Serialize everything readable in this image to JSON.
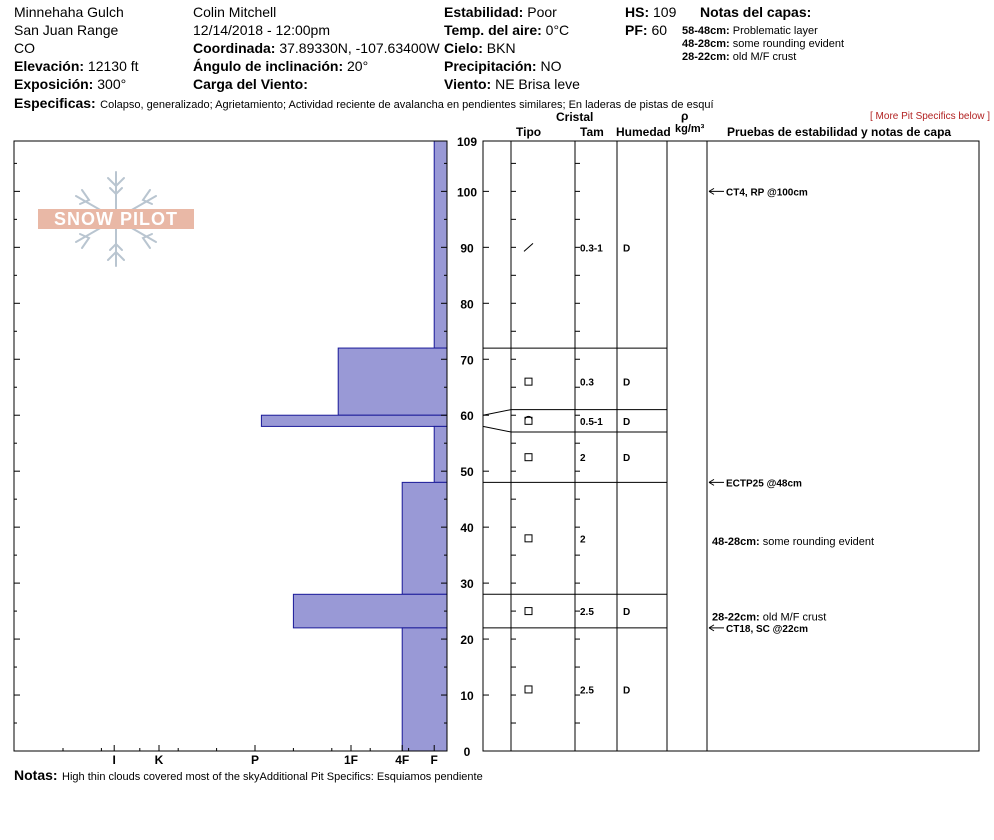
{
  "header": {
    "location": "Minnehaha Gulch",
    "range": "San Juan Range",
    "state": "CO",
    "elevation_label": "Elevación:",
    "elevation_value": "12130 ft",
    "aspect_label": "Exposición:",
    "aspect_value": "300°",
    "observer": "Colin Mitchell",
    "datetime": "12/14/2018 - 12:00pm",
    "coord_label": "Coordinada:",
    "coord_value": "37.89330N, -107.63400W",
    "slope_label": "Ángulo de inclinación:",
    "slope_value": "20°",
    "wind_load_label": "Carga del Viento:",
    "wind_load_value": "",
    "stability_label": "Estabilidad:",
    "stability_value": "Poor",
    "air_temp_label": "Temp. del aire:",
    "air_temp_value": "0°C",
    "sky_label": "Cielo:",
    "sky_value": "BKN",
    "precip_label": "Precipitación:",
    "precip_value": "NO",
    "wind_label": "Viento:",
    "wind_value": "NE Brisa leve",
    "hs_label": "HS:",
    "hs_value": "109",
    "pf_label": "PF:",
    "pf_value": "60",
    "layer_notes_title": "Notas del capas:",
    "layer_notes": [
      {
        "range": "58-48cm:",
        "text": "Problematic layer"
      },
      {
        "range": "48-28cm:",
        "text": "some rounding evident"
      },
      {
        "range": "28-22cm:",
        "text": "old M/F crust"
      }
    ],
    "specifics_label": "Especificas:",
    "specifics_value": "Colapso, generalizado;  Agrietamiento;  Actividad reciente de avalancha en pendientes similares;  En laderas de pistas de esquí",
    "more_specifics": "[ More Pit Specifics below ]"
  },
  "columns": {
    "crystal": "Cristal",
    "type": "Tipo",
    "size": "Tam",
    "moisture": "Humedad",
    "rho": "ρ",
    "density_unit": "kg/m³",
    "tests": "Pruebas de estabilidad y notas de capa"
  },
  "footer": {
    "notes_label": "Notas:",
    "notes_value": "High thin clouds covered most of the skyAdditional Pit Specifics: Esquiamos pendiente"
  },
  "colors": {
    "hardness_fill": "#9999d6",
    "hardness_stroke": "#1a1a99",
    "logo": "#e9b8a6",
    "flake": "#b9c5d0"
  },
  "chart_data": {
    "type": "bar",
    "total_depth_cm": 109,
    "depth_axis": {
      "min": 0,
      "max": 109,
      "labeled_ticks": [
        0,
        10,
        20,
        30,
        40,
        50,
        60,
        70,
        80,
        90,
        100,
        109
      ]
    },
    "hardness_ticks": [
      {
        "label": "I",
        "rank": 5.2
      },
      {
        "label": "K",
        "rank": 4.5
      },
      {
        "label": "P",
        "rank": 3
      },
      {
        "label": "1F",
        "rank": 1.5
      },
      {
        "label": "4F",
        "rank": 0.7
      },
      {
        "label": "F",
        "rank": 0.2
      }
    ],
    "hardness_layers": [
      {
        "top": 109,
        "bottom": 72,
        "hardness": "F",
        "rank": 0.2
      },
      {
        "top": 72,
        "bottom": 60,
        "hardness": "1F",
        "rank": 1.7
      },
      {
        "top": 60,
        "bottom": 58,
        "hardness": "P",
        "rank": 2.9
      },
      {
        "top": 58,
        "bottom": 48,
        "hardness": "F",
        "rank": 0.2
      },
      {
        "top": 48,
        "bottom": 28,
        "hardness": "4F",
        "rank": 0.7
      },
      {
        "top": 28,
        "bottom": 22,
        "hardness": "P",
        "rank": 2.4
      },
      {
        "top": 22,
        "bottom": 0,
        "hardness": "4F",
        "rank": 0.7
      }
    ],
    "layer_boundaries_cm": [
      109,
      72,
      61,
      57,
      48,
      28,
      22
    ],
    "layers": [
      {
        "center": 90,
        "grain": "decomposing",
        "size": "0.3-1",
        "moisture": "D"
      },
      {
        "center": 66,
        "grain": "faceted",
        "size": "0.3",
        "moisture": "D"
      },
      {
        "center": 59,
        "grain": "faceted-rounded",
        "size": "0.5-1",
        "moisture": "D"
      },
      {
        "center": 52.5,
        "grain": "faceted",
        "size": "2",
        "moisture": "D"
      },
      {
        "center": 38,
        "grain": "faceted",
        "size": "2",
        "moisture": ""
      },
      {
        "center": 25,
        "grain": "faceted",
        "size": "2.5",
        "moisture": "D"
      },
      {
        "center": 11,
        "grain": "faceted",
        "size": "2.5",
        "moisture": "D"
      }
    ],
    "tests": [
      {
        "depth": 100,
        "label": "CT4, RP @100cm"
      },
      {
        "depth": 48,
        "label": "ECTP25 @48cm"
      },
      {
        "depth": 22,
        "label": "CT18, SC @22cm"
      }
    ],
    "layer_comments": [
      {
        "depth": 37.5,
        "range": "48-28cm:",
        "text": "some rounding evident"
      },
      {
        "depth": 24,
        "range": "28-22cm:",
        "text": "old M/F crust"
      }
    ]
  }
}
